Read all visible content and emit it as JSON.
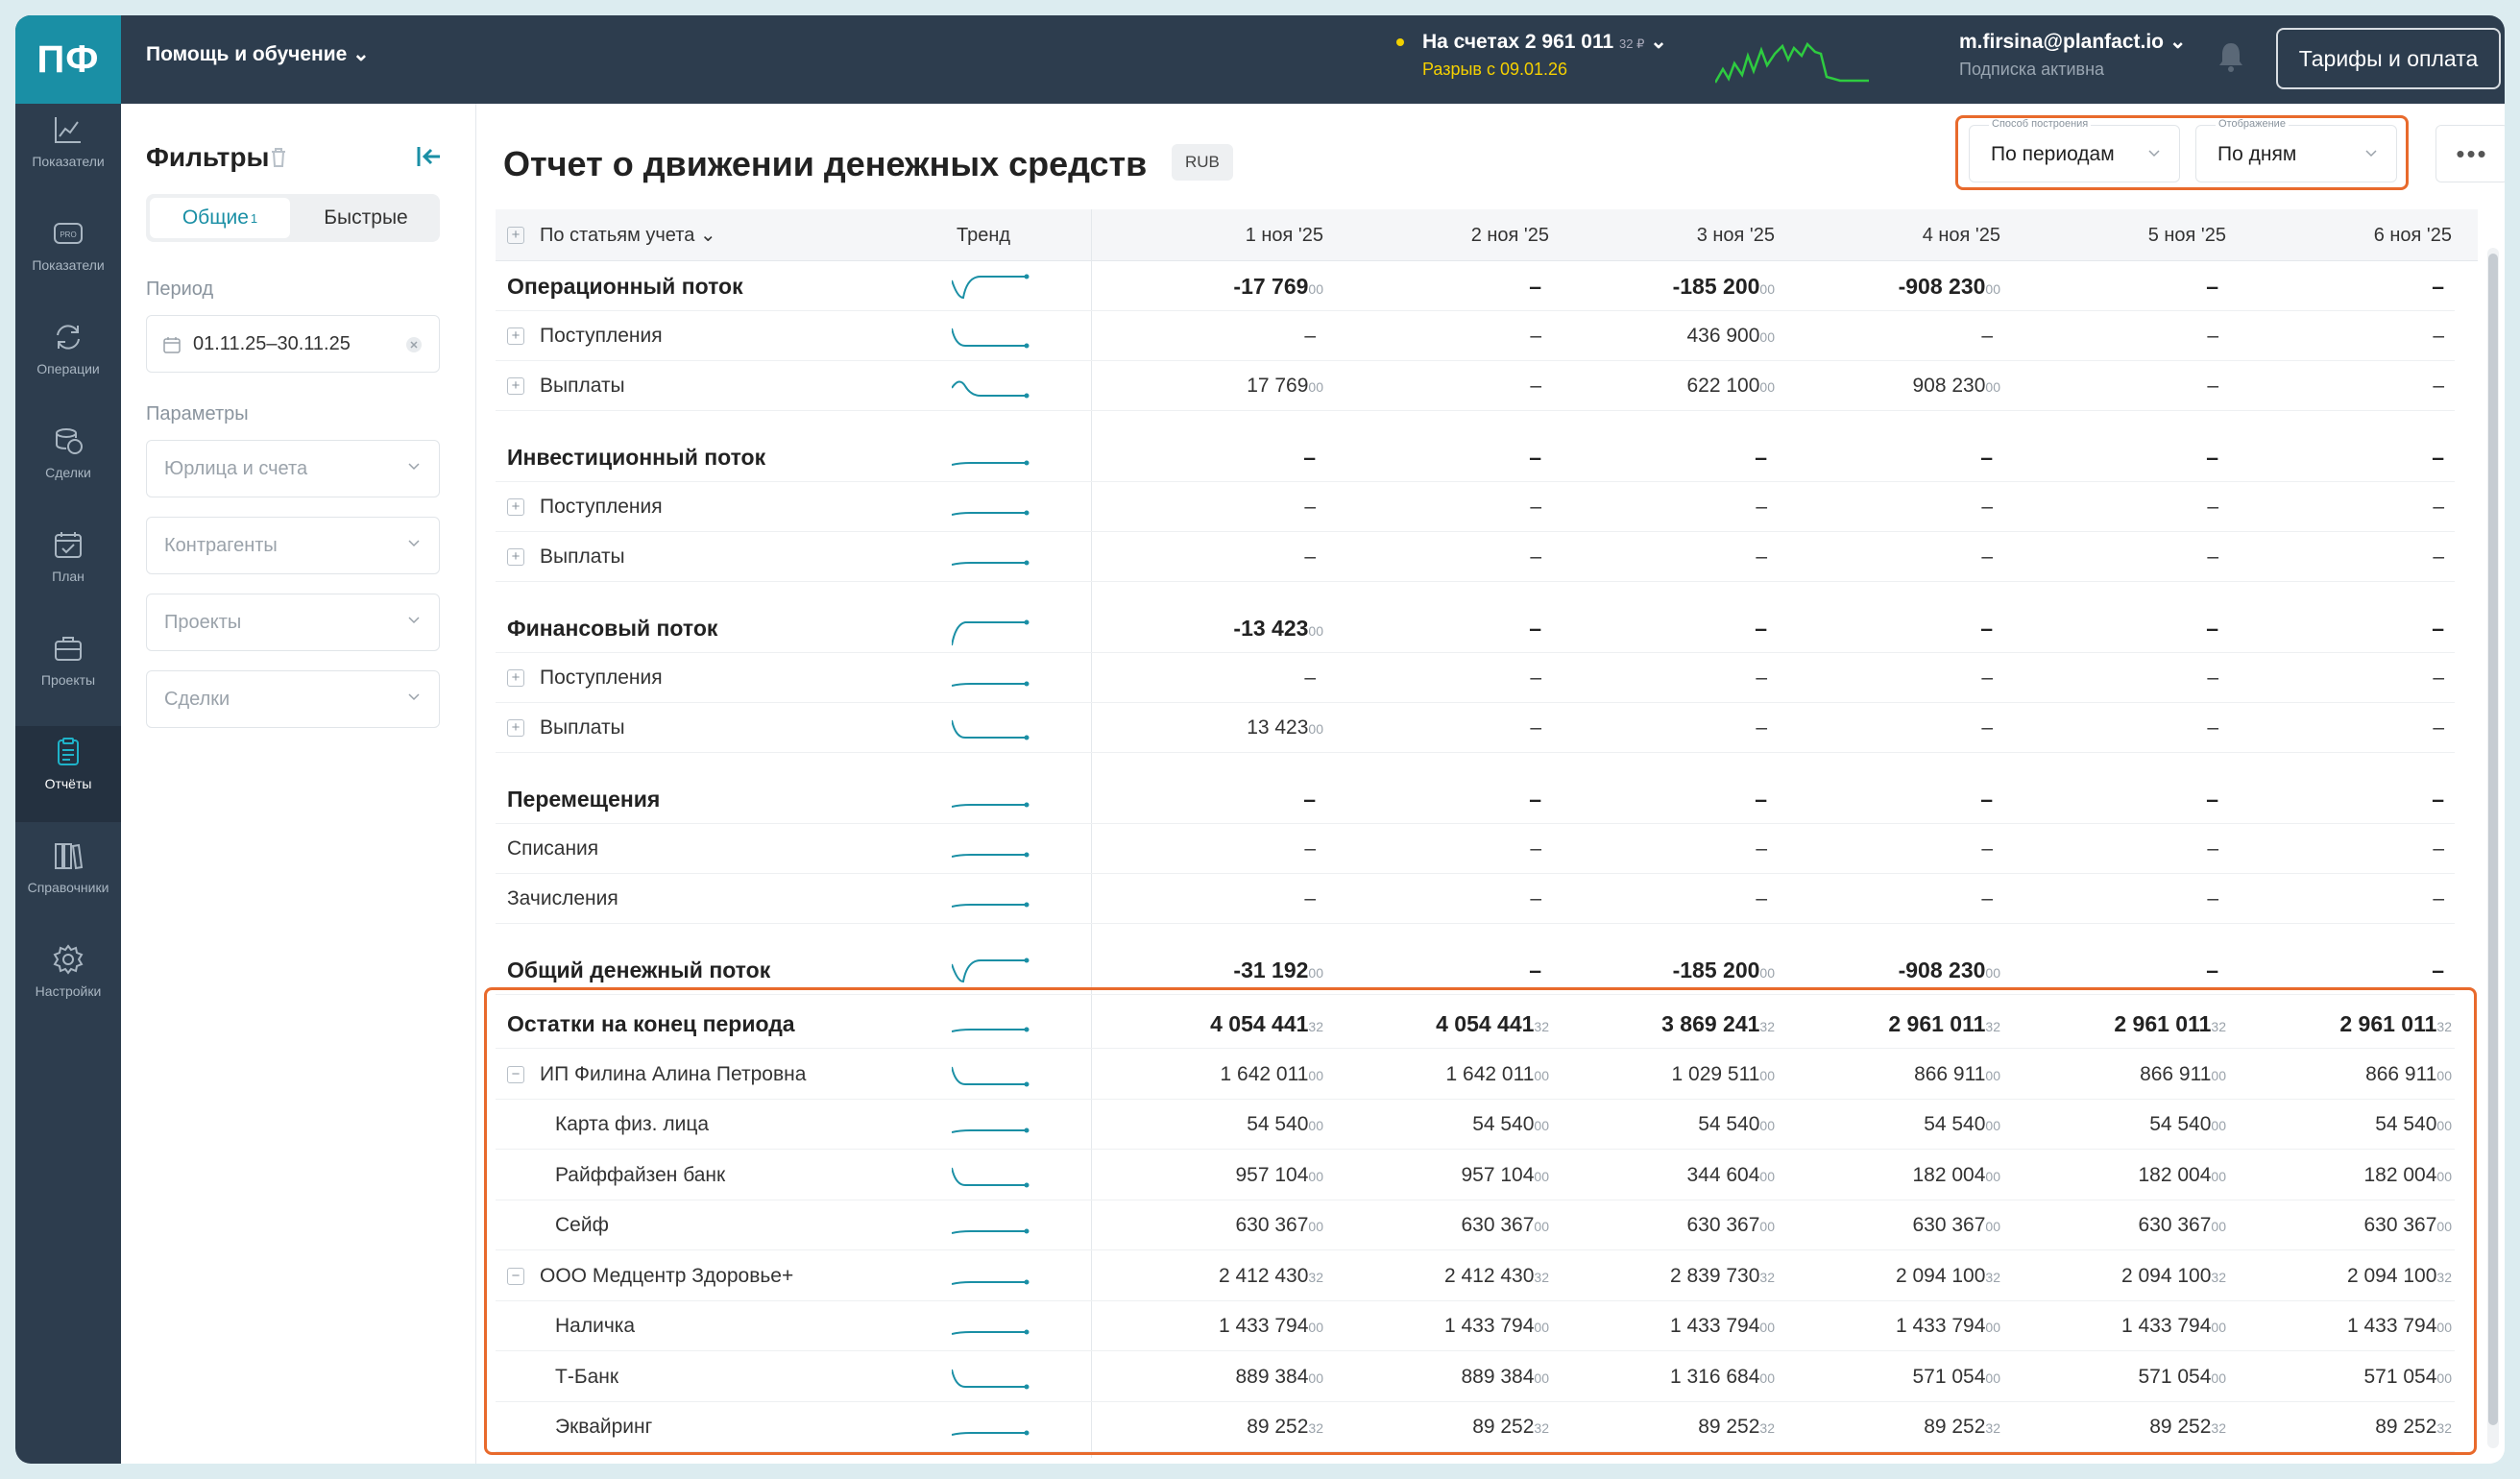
{
  "app": {
    "logo": "ПФ",
    "help_menu": "Помощь и обучение"
  },
  "header": {
    "balance_label": "На счетах 2 961 011",
    "balance_cents": "32 ₽",
    "gap_label": "Разрыв с 09.01.26",
    "user_email": "m.firsina@planfact.io",
    "subscription": "Подписка активна",
    "tariff_button": "Тарифы и оплата"
  },
  "sidebar": {
    "items": [
      {
        "label": "Показатели",
        "icon": "chart-line-icon"
      },
      {
        "label": "Показатели",
        "icon": "pro-badge-icon"
      },
      {
        "label": "Операции",
        "icon": "sync-icon"
      },
      {
        "label": "Сделки",
        "icon": "coins-icon"
      },
      {
        "label": "План",
        "icon": "calendar-icon"
      },
      {
        "label": "Проекты",
        "icon": "briefcase-icon"
      },
      {
        "label": "Отчёты",
        "icon": "report-icon"
      },
      {
        "label": "Справочники",
        "icon": "books-icon"
      },
      {
        "label": "Настройки",
        "icon": "gear-icon"
      }
    ],
    "active": "Отчёты"
  },
  "filters": {
    "title": "Фильтры",
    "tab_general": "Общие",
    "tab_general_count": "1",
    "tab_quick": "Быстрые",
    "period_label": "Период",
    "period_value": "01.11.25–30.11.25",
    "params_label": "Параметры",
    "legal": "Юрлица и счета",
    "contractors": "Контрагенты",
    "projects": "Проекты",
    "deals": "Сделки"
  },
  "report": {
    "title": "Отчет о движении денежных средств",
    "currency": "RUB",
    "method_label": "Способ построения",
    "method_value": "По периодам",
    "view_label": "Отображение",
    "view_value": "По дням",
    "more": "•••"
  },
  "table": {
    "group_header": "По статьям учета",
    "trend_header": "Тренд",
    "columns": [
      "1 ноя '25",
      "2 ноя '25",
      "3 ноя '25",
      "4 ноя '25",
      "5 ноя '25",
      "6 ноя '25"
    ],
    "rows": [
      {
        "label": "Операционный поток",
        "type": "grp",
        "values": [
          [
            "-17 769",
            "00"
          ],
          [
            "–",
            ""
          ],
          [
            "-185 200",
            "00"
          ],
          [
            "-908 230",
            "00"
          ],
          [
            "–",
            ""
          ],
          [
            "–",
            ""
          ]
        ],
        "trend": "dip"
      },
      {
        "label": "Поступления",
        "type": "sub",
        "values": [
          [
            "–",
            ""
          ],
          [
            "–",
            ""
          ],
          [
            "436 900",
            "00"
          ],
          [
            "–",
            ""
          ],
          [
            "–",
            ""
          ],
          [
            "–",
            ""
          ]
        ],
        "trend": "down"
      },
      {
        "label": "Выплаты",
        "type": "sub",
        "values": [
          [
            "17 769",
            "00"
          ],
          [
            "–",
            ""
          ],
          [
            "622 100",
            "00"
          ],
          [
            "908 230",
            "00"
          ],
          [
            "–",
            ""
          ],
          [
            "–",
            ""
          ]
        ],
        "trend": "bump"
      },
      {
        "label": "Инвестиционный поток",
        "type": "grp",
        "values": [
          [
            "–",
            ""
          ],
          [
            "–",
            ""
          ],
          [
            "–",
            ""
          ],
          [
            "–",
            ""
          ],
          [
            "–",
            ""
          ],
          [
            "–",
            ""
          ]
        ],
        "trend": "flat"
      },
      {
        "label": "Поступления",
        "type": "sub",
        "values": [
          [
            "–",
            ""
          ],
          [
            "–",
            ""
          ],
          [
            "–",
            ""
          ],
          [
            "–",
            ""
          ],
          [
            "–",
            ""
          ],
          [
            "–",
            ""
          ]
        ],
        "trend": "flat"
      },
      {
        "label": "Выплаты",
        "type": "sub",
        "values": [
          [
            "–",
            ""
          ],
          [
            "–",
            ""
          ],
          [
            "–",
            ""
          ],
          [
            "–",
            ""
          ],
          [
            "–",
            ""
          ],
          [
            "–",
            ""
          ]
        ],
        "trend": "flat"
      },
      {
        "label": "Финансовый поток",
        "type": "grp",
        "values": [
          [
            "-13 423",
            "00"
          ],
          [
            "–",
            ""
          ],
          [
            "–",
            ""
          ],
          [
            "–",
            ""
          ],
          [
            "–",
            ""
          ],
          [
            "–",
            ""
          ]
        ],
        "trend": "rise"
      },
      {
        "label": "Поступления",
        "type": "sub",
        "values": [
          [
            "–",
            ""
          ],
          [
            "–",
            ""
          ],
          [
            "–",
            ""
          ],
          [
            "–",
            ""
          ],
          [
            "–",
            ""
          ],
          [
            "–",
            ""
          ]
        ],
        "trend": "flat"
      },
      {
        "label": "Выплаты",
        "type": "sub",
        "values": [
          [
            "13 423",
            "00"
          ],
          [
            "–",
            ""
          ],
          [
            "–",
            ""
          ],
          [
            "–",
            ""
          ],
          [
            "–",
            ""
          ],
          [
            "–",
            ""
          ]
        ],
        "trend": "down"
      },
      {
        "label": "Перемещения",
        "type": "grp",
        "values": [
          [
            "–",
            ""
          ],
          [
            "–",
            ""
          ],
          [
            "–",
            ""
          ],
          [
            "–",
            ""
          ],
          [
            "–",
            ""
          ],
          [
            "–",
            ""
          ]
        ],
        "trend": "flat"
      },
      {
        "label": "Списания",
        "type": "plain",
        "values": [
          [
            "–",
            ""
          ],
          [
            "–",
            ""
          ],
          [
            "–",
            ""
          ],
          [
            "–",
            ""
          ],
          [
            "–",
            ""
          ],
          [
            "–",
            ""
          ]
        ],
        "trend": "flat"
      },
      {
        "label": "Зачисления",
        "type": "plain",
        "values": [
          [
            "–",
            ""
          ],
          [
            "–",
            ""
          ],
          [
            "–",
            ""
          ],
          [
            "–",
            ""
          ],
          [
            "–",
            ""
          ],
          [
            "–",
            ""
          ]
        ],
        "trend": "flat"
      },
      {
        "label": "Общий денежный поток",
        "type": "grp",
        "values": [
          [
            "-31 192",
            "00"
          ],
          [
            "–",
            ""
          ],
          [
            "-185 200",
            "00"
          ],
          [
            "-908 230",
            "00"
          ],
          [
            "–",
            ""
          ],
          [
            "–",
            ""
          ]
        ],
        "trend": "dip"
      },
      {
        "label": "Остатки на конец периода",
        "type": "grp",
        "values": [
          [
            "4 054 441",
            "32"
          ],
          [
            "4 054 441",
            "32"
          ],
          [
            "3 869 241",
            "32"
          ],
          [
            "2 961 011",
            "32"
          ],
          [
            "2 961 011",
            "32"
          ],
          [
            "2 961 011",
            "32"
          ]
        ],
        "trend": "flat"
      },
      {
        "label": "ИП Филина Алина Петровна",
        "type": "minus",
        "values": [
          [
            "1 642 011",
            "00"
          ],
          [
            "1 642 011",
            "00"
          ],
          [
            "1 029 511",
            "00"
          ],
          [
            "866 911",
            "00"
          ],
          [
            "866 911",
            "00"
          ],
          [
            "866 911",
            "00"
          ]
        ],
        "trend": "down"
      },
      {
        "label": "Карта физ. лица",
        "type": "indent",
        "values": [
          [
            "54 540",
            "00"
          ],
          [
            "54 540",
            "00"
          ],
          [
            "54 540",
            "00"
          ],
          [
            "54 540",
            "00"
          ],
          [
            "54 540",
            "00"
          ],
          [
            "54 540",
            "00"
          ]
        ],
        "trend": "flat"
      },
      {
        "label": "Райффайзен банк",
        "type": "indent",
        "values": [
          [
            "957 104",
            "00"
          ],
          [
            "957 104",
            "00"
          ],
          [
            "344 604",
            "00"
          ],
          [
            "182 004",
            "00"
          ],
          [
            "182 004",
            "00"
          ],
          [
            "182 004",
            "00"
          ]
        ],
        "trend": "down"
      },
      {
        "label": "Сейф",
        "type": "indent",
        "values": [
          [
            "630 367",
            "00"
          ],
          [
            "630 367",
            "00"
          ],
          [
            "630 367",
            "00"
          ],
          [
            "630 367",
            "00"
          ],
          [
            "630 367",
            "00"
          ],
          [
            "630 367",
            "00"
          ]
        ],
        "trend": "flat"
      },
      {
        "label": "ООО Медцентр Здоровье+",
        "type": "minus",
        "values": [
          [
            "2 412 430",
            "32"
          ],
          [
            "2 412 430",
            "32"
          ],
          [
            "2 839 730",
            "32"
          ],
          [
            "2 094 100",
            "32"
          ],
          [
            "2 094 100",
            "32"
          ],
          [
            "2 094 100",
            "32"
          ]
        ],
        "trend": "flat"
      },
      {
        "label": "Наличка",
        "type": "indent",
        "values": [
          [
            "1 433 794",
            "00"
          ],
          [
            "1 433 794",
            "00"
          ],
          [
            "1 433 794",
            "00"
          ],
          [
            "1 433 794",
            "00"
          ],
          [
            "1 433 794",
            "00"
          ],
          [
            "1 433 794",
            "00"
          ]
        ],
        "trend": "flat"
      },
      {
        "label": "Т-Банк",
        "type": "indent",
        "values": [
          [
            "889 384",
            "00"
          ],
          [
            "889 384",
            "00"
          ],
          [
            "1 316 684",
            "00"
          ],
          [
            "571 054",
            "00"
          ],
          [
            "571 054",
            "00"
          ],
          [
            "571 054",
            "00"
          ]
        ],
        "trend": "down"
      },
      {
        "label": "Эквайринг",
        "type": "indent",
        "values": [
          [
            "89 252",
            "32"
          ],
          [
            "89 252",
            "32"
          ],
          [
            "89 252",
            "32"
          ],
          [
            "89 252",
            "32"
          ],
          [
            "89 252",
            "32"
          ],
          [
            "89 252",
            "32"
          ]
        ],
        "trend": "flat"
      }
    ]
  },
  "colors": {
    "accent": "#1a8fa5",
    "highlight": "#e86a2c",
    "topbar": "#2d3d4e",
    "trend": "#1a8fa5"
  }
}
